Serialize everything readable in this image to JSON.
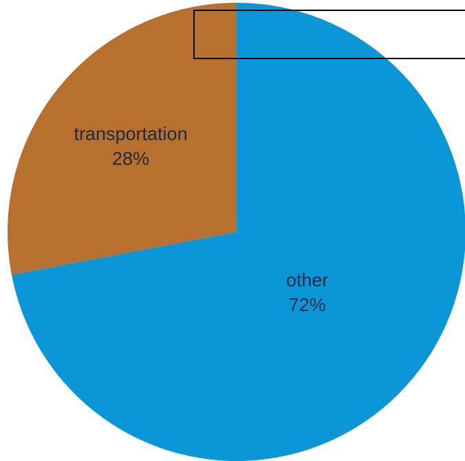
{
  "chart_data": {
    "type": "pie",
    "title": "",
    "start_angle_deg": 0,
    "direction": "clockwise",
    "slices": [
      {
        "label": "other",
        "value": 72,
        "display": "72%",
        "color": "#0b96d8"
      },
      {
        "label": "transportation",
        "value": 28,
        "display": "28%",
        "color": "#b8702e"
      }
    ],
    "legend": "none",
    "annotation_box": true
  }
}
